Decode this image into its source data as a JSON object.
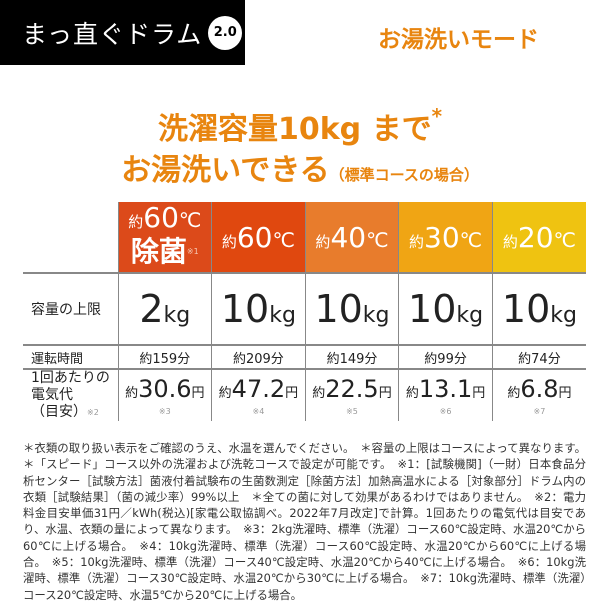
{
  "logo": {
    "text": "まっ直ぐドラム",
    "version": "2.0"
  },
  "mode_title": "お湯洗いモード",
  "headline": {
    "line1": "洗濯容量10kg まで",
    "line1_mark": "*",
    "line2": "お湯洗いできる",
    "line2_note": "（標準コースの場合）"
  },
  "table": {
    "columns": [
      {
        "prefix": "約",
        "temp": "60",
        "unit": "℃",
        "sub": "除菌",
        "note": "※1",
        "color": "#dc4a1a"
      },
      {
        "prefix": "約",
        "temp": "60",
        "unit": "℃",
        "color": "#e0480f"
      },
      {
        "prefix": "約",
        "temp": "40",
        "unit": "℃",
        "color": "#e87c2c"
      },
      {
        "prefix": "約",
        "temp": "30",
        "unit": "℃",
        "color": "#f0a514"
      },
      {
        "prefix": "約",
        "temp": "20",
        "unit": "℃",
        "color": "#efc311"
      }
    ],
    "row_capacity": {
      "label": "容量の上限",
      "values": [
        "2",
        "10",
        "10",
        "10",
        "10"
      ],
      "unit": "kg"
    },
    "row_time": {
      "label": "運転時間",
      "values": [
        "約159分",
        "約209分",
        "約149分",
        "約99分",
        "約74分"
      ]
    },
    "row_cost": {
      "label1": "1回あたりの",
      "label2": "電気代",
      "label3": "（目安）",
      "label_note": "※2",
      "prefix": "約",
      "unit": "円",
      "values": [
        "30.6",
        "47.2",
        "22.5",
        "13.1",
        "6.8"
      ],
      "notes": [
        "※3",
        "※4",
        "※5",
        "※6",
        "※7"
      ]
    }
  },
  "footnotes": "＊衣類の取り扱い表示をご確認のうえ、水温を選んでください。　＊容量の上限はコースによって異なります。＊「スピード」コース以外の洗濯および洗乾コースで設定が可能です。　※1：[試験機関]（一財）日本食品分析センター［試験方法］菌液付着試験布の生菌数測定［除菌方法］加熱高温水による［対象部分］ドラム内の衣類［試験結果］（菌の減少率）99%以上　＊全ての菌に対して効果があるわけではありません。　※2：電力料金目安単価31円／kWh(税込)[家電公取協調べ。2022年7月改定]で計算。1回あたりの電気代は目安であり、水温、衣類の量によって異なります。　※3：2kg洗濯時、標準（洗濯）コース60℃設定時、水温20℃から60℃に上げる場合。　※4：10kg洗濯時、標準（洗濯）コース60℃設定時、水温20℃から60℃に上げる場合。　※5：10kg洗濯時、標準（洗濯）コース40℃設定時、水温20℃から40℃に上げる場合。　※6：10kg洗濯時、標準（洗濯）コース30℃設定時、水温20℃から30℃に上げる場合。　※7：10kg洗濯時、標準（洗濯）コース20℃設定時、水温5℃から20℃に上げる場合。"
}
